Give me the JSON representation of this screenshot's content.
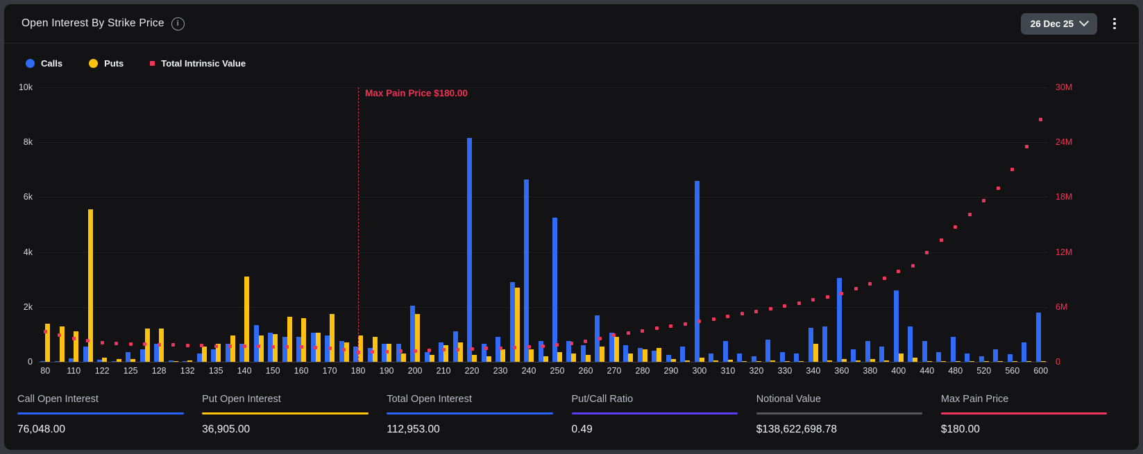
{
  "header": {
    "title": "Open Interest By Strike Price",
    "expiry_selected": "26 Dec 25"
  },
  "legend": [
    {
      "label": "Calls",
      "color": "#2f6bf5",
      "shape": "circle"
    },
    {
      "label": "Puts",
      "color": "#fdc20f",
      "shape": "circle"
    },
    {
      "label": "Total Intrinsic Value",
      "color": "#f0365a",
      "shape": "square"
    }
  ],
  "chart_data": {
    "type": "bar",
    "title": "Open Interest By Strike Price",
    "legend_position": "top-left",
    "grid": true,
    "strikes": [
      80,
      100,
      110,
      115,
      122,
      124,
      125,
      126,
      128,
      130,
      132,
      134,
      135,
      138,
      140,
      145,
      150,
      155,
      160,
      165,
      170,
      175,
      180,
      185,
      190,
      195,
      200,
      205,
      210,
      215,
      220,
      225,
      230,
      235,
      240,
      245,
      250,
      255,
      260,
      265,
      270,
      275,
      280,
      285,
      290,
      295,
      300,
      305,
      310,
      315,
      320,
      325,
      330,
      335,
      340,
      350,
      360,
      370,
      380,
      390,
      400,
      420,
      440,
      460,
      480,
      500,
      520,
      540,
      560,
      580,
      600
    ],
    "x_tick_labels": [
      "80",
      "110",
      "122",
      "125",
      "128",
      "132",
      "135",
      "140",
      "150",
      "160",
      "170",
      "180",
      "190",
      "200",
      "210",
      "220",
      "230",
      "240",
      "250",
      "260",
      "270",
      "280",
      "290",
      "300",
      "310",
      "320",
      "330",
      "340",
      "360",
      "380",
      "400",
      "440",
      "480",
      "520",
      "560",
      "600"
    ],
    "left_axis": {
      "ticks": [
        "10k",
        "8k",
        "6k",
        "4k",
        "2k",
        "0"
      ],
      "max": 10000,
      "color": "#dadbdd"
    },
    "right_axis": {
      "ticks": [
        "30M",
        "24M",
        "18M",
        "12M",
        "6M",
        "0"
      ],
      "max": 30000000,
      "color": "#f0365a"
    },
    "series": [
      {
        "name": "Calls",
        "type": "bar",
        "color": "#2f6bf5",
        "values": [
          30,
          30,
          120,
          550,
          70,
          30,
          350,
          450,
          650,
          50,
          30,
          300,
          450,
          650,
          650,
          1350,
          1050,
          900,
          900,
          1050,
          950,
          750,
          550,
          500,
          650,
          650,
          2050,
          350,
          700,
          1100,
          8150,
          650,
          900,
          2900,
          6650,
          750,
          5250,
          750,
          600,
          1700,
          1050,
          600,
          500,
          400,
          250,
          550,
          6600,
          300,
          750,
          300,
          200,
          800,
          350,
          300,
          1250,
          1300,
          3050,
          450,
          750,
          550,
          2600,
          1300,
          750,
          350,
          900,
          300,
          200,
          450,
          280,
          700,
          1800
        ]
      },
      {
        "name": "Puts",
        "type": "bar",
        "color": "#fdc20f",
        "values": [
          1400,
          1300,
          1100,
          5550,
          150,
          100,
          100,
          1200,
          1200,
          30,
          50,
          550,
          650,
          950,
          3100,
          950,
          1000,
          1650,
          1600,
          1050,
          1750,
          700,
          950,
          900,
          650,
          300,
          1750,
          250,
          600,
          700,
          250,
          200,
          450,
          2700,
          450,
          200,
          350,
          300,
          250,
          550,
          900,
          300,
          450,
          500,
          100,
          50,
          150,
          50,
          80,
          30,
          20,
          50,
          30,
          20,
          650,
          50,
          100,
          50,
          100,
          50,
          300,
          150,
          30,
          20,
          20,
          10,
          10,
          10,
          10,
          10,
          20
        ]
      },
      {
        "name": "Total Intrinsic Value",
        "type": "scatter",
        "color": "#f0365a",
        "axis": "right",
        "unit": "M",
        "values": [
          3.3,
          2.9,
          2.55,
          2.3,
          2.1,
          2.02,
          1.95,
          1.9,
          1.86,
          1.82,
          1.79,
          1.76,
          1.74,
          1.72,
          1.7,
          1.68,
          1.66,
          1.64,
          1.6,
          1.55,
          1.5,
          1.3,
          1.05,
          1.08,
          1.12,
          1.16,
          1.2,
          1.25,
          1.3,
          1.35,
          1.4,
          1.45,
          1.5,
          1.56,
          1.64,
          1.74,
          1.85,
          2.0,
          2.2,
          2.55,
          2.9,
          3.15,
          3.4,
          3.65,
          3.9,
          4.15,
          4.4,
          4.65,
          4.95,
          5.25,
          5.5,
          5.8,
          6.1,
          6.4,
          6.8,
          7.1,
          7.5,
          8.0,
          8.5,
          9.1,
          9.9,
          10.5,
          11.9,
          13.3,
          14.7,
          16.1,
          17.6,
          19.0,
          21.0,
          23.5,
          26.5
        ]
      }
    ],
    "annotation": {
      "text": "Max Pain Price $180.00",
      "strike": 180,
      "color": "#ef3256"
    }
  },
  "stats": [
    {
      "label": "Call Open Interest",
      "value": "76,048.00",
      "color": "#2962ff"
    },
    {
      "label": "Put Open Interest",
      "value": "36,905.00",
      "color": "#fdc20f"
    },
    {
      "label": "Total Open Interest",
      "value": "112,953.00",
      "color": "#2962ff"
    },
    {
      "label": "Put/Call Ratio",
      "value": "0.49",
      "color": "#5b3df5"
    },
    {
      "label": "Notional Value",
      "value": "$138,622,698.78",
      "color": "#54575d"
    },
    {
      "label": "Max Pain Price",
      "value": "$180.00",
      "color": "#f2365f"
    }
  ]
}
